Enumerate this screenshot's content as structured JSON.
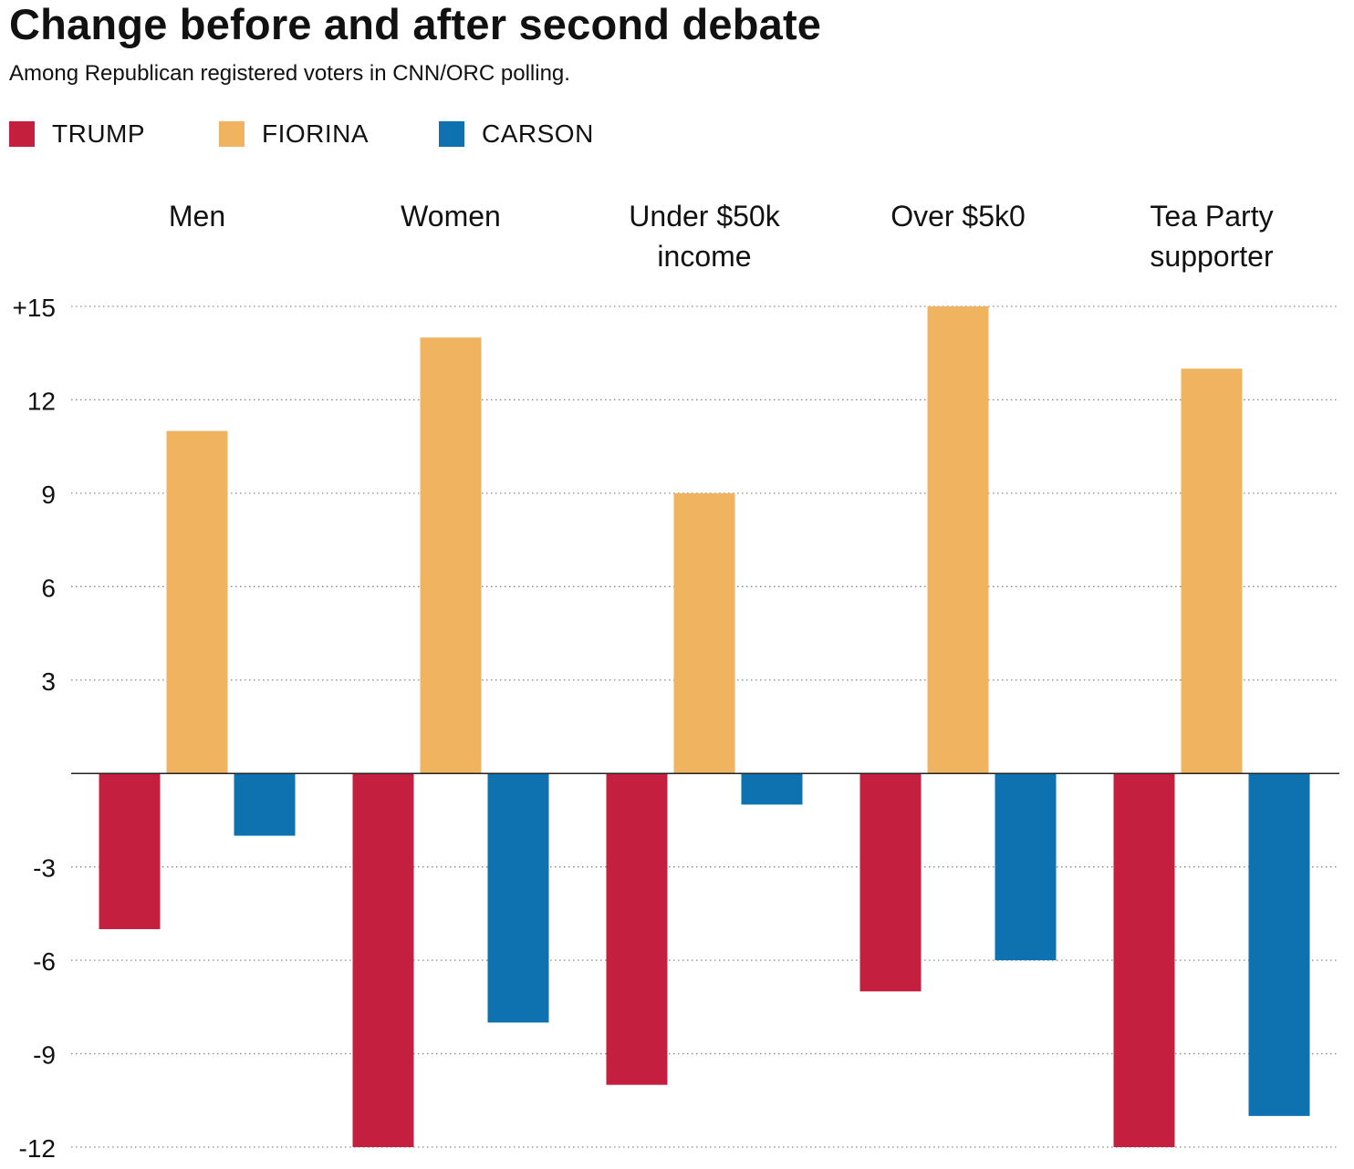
{
  "title": "Change before and after second debate",
  "subtitle": "Among Republican registered voters in CNN/ORC polling.",
  "legend": [
    {
      "label": "TRUMP",
      "color": "#c41f3e"
    },
    {
      "label": "FIORINA",
      "color": "#f0b35f"
    },
    {
      "label": "CARSON",
      "color": "#0e72b0"
    }
  ],
  "chart_data": {
    "type": "bar",
    "title": "Change before and after second debate",
    "subtitle": "Among Republican registered voters in CNN/ORC polling.",
    "categories": [
      [
        "Men"
      ],
      [
        "Women"
      ],
      [
        "Under $50k",
        "income"
      ],
      [
        "Over $5k0"
      ],
      [
        "Tea Party",
        "supporter"
      ]
    ],
    "series": [
      {
        "name": "TRUMP",
        "color": "#c41f3e",
        "values": [
          -5,
          -12,
          -10,
          -7,
          -12
        ]
      },
      {
        "name": "FIORINA",
        "color": "#f0b35f",
        "values": [
          11,
          14,
          9,
          15,
          13
        ]
      },
      {
        "name": "CARSON",
        "color": "#0e72b0",
        "values": [
          -2,
          -8,
          -1,
          -6,
          -11
        ]
      }
    ],
    "ylim": [
      -12,
      15
    ],
    "yticks": [
      {
        "value": 15,
        "label": "+15"
      },
      {
        "value": 12,
        "label": "12"
      },
      {
        "value": 9,
        "label": "9"
      },
      {
        "value": 6,
        "label": "6"
      },
      {
        "value": 3,
        "label": "3"
      },
      {
        "value": -3,
        "label": "-3"
      },
      {
        "value": -6,
        "label": "-6"
      },
      {
        "value": -9,
        "label": "-9"
      },
      {
        "value": -12,
        "label": "-12"
      }
    ],
    "grid": true,
    "legend_position": "top-left",
    "xlabel": "",
    "ylabel": ""
  }
}
